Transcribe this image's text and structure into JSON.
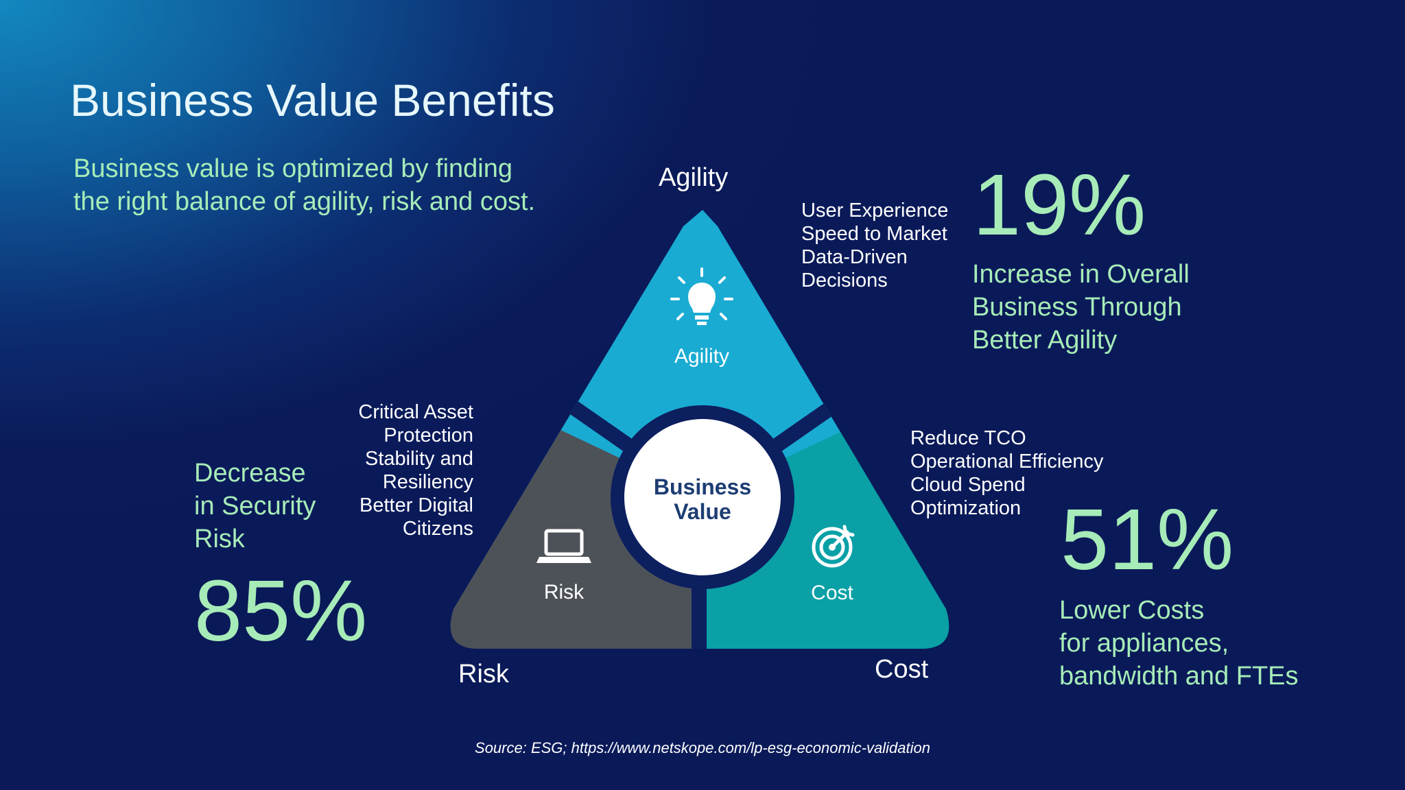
{
  "title": "Business Value Benefits",
  "subtitle_lines": [
    "Business value is optimized by finding",
    "the right balance of agility, risk and cost."
  ],
  "diagram": {
    "center_lines": [
      "Business",
      "Value"
    ],
    "segments": {
      "agility": {
        "label": "Agility",
        "icon": "lightbulb-icon",
        "color": "#1aabd3"
      },
      "risk": {
        "label": "Risk",
        "icon": "laptop-icon",
        "color": "#4d5259"
      },
      "cost": {
        "label": "Cost",
        "icon": "target-icon",
        "color": "#0aa0a6"
      }
    }
  },
  "corner_labels": {
    "agility": "Agility",
    "risk": "Risk",
    "cost": "Cost"
  },
  "agility_benefits": [
    "User Experience",
    "Speed to Market",
    "Data-Driven",
    "Decisions"
  ],
  "risk_benefits": [
    "Critical Asset",
    "Protection",
    "Stability and",
    "Resiliency",
    "Better Digital",
    "Citizens"
  ],
  "cost_benefits": [
    "Reduce TCO",
    "Operational Efficiency",
    "Cloud Spend",
    "Optimization"
  ],
  "stats": {
    "agility": {
      "value": "19%",
      "description_lines": [
        "Increase in Overall",
        "Business Through",
        "Better Agility"
      ]
    },
    "risk": {
      "value": "85%",
      "description_lines": [
        "Decrease",
        "in Security",
        "Risk"
      ]
    },
    "cost": {
      "value": "51%",
      "description_lines": [
        "Lower Costs",
        "for appliances,",
        "bandwidth and FTEs"
      ]
    }
  },
  "source": "Source: ESG; https://www.netskope.com/lp-esg-economic-validation",
  "colors": {
    "background_dark": "#0a1a59",
    "background_accent": "#1388c0",
    "accent_green": "#a7ecb8",
    "outline": "#0c1f5e"
  }
}
